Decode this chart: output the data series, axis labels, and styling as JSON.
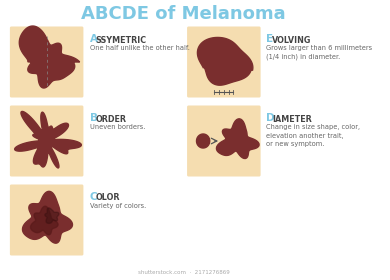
{
  "title": "ABCDE of Melanoma",
  "title_color": "#7ec8e3",
  "title_fontsize": 13,
  "bg_color": "#ffffff",
  "items": [
    {
      "letter": "A",
      "label": "SSYMETRIC",
      "desc": "One half unlike the other half.",
      "col": 0,
      "row": 0
    },
    {
      "letter": "E",
      "label": "VOLVING",
      "desc": "Grows larger than 6 millimeters\n(1/4 inch) in diameter.",
      "col": 1,
      "row": 0
    },
    {
      "letter": "B",
      "label": "ORDER",
      "desc": "Uneven borders.",
      "col": 0,
      "row": 1
    },
    {
      "letter": "D",
      "label": "IAMETER",
      "desc": "Change in size shape, color,\nelevation another trait,\nor new symptom.",
      "col": 1,
      "row": 1
    },
    {
      "letter": "C",
      "label": "OLOR",
      "desc": "Variety of colors.",
      "col": 0,
      "row": 2
    }
  ],
  "letter_color": "#7ec8e3",
  "label_color": "#444444",
  "desc_color": "#666666",
  "spot_color": "#7a2e2e",
  "spot_color2": "#5a1a1a",
  "card_bg": "#f5ddb0",
  "watermark": "shutterstock.com  ·  2171276869"
}
